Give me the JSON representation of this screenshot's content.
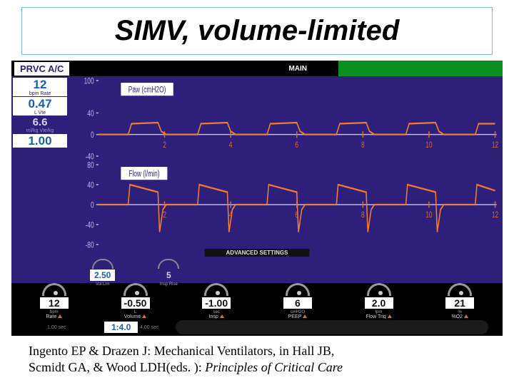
{
  "title": "SIMV, volume-limited",
  "header": {
    "mode": "PRVC A/C",
    "main_tab": "MAIN"
  },
  "readouts": [
    {
      "value": "12",
      "label": "bpm Rate",
      "cls": "light"
    },
    {
      "value": "0.47",
      "label": "L Vte",
      "cls": "light"
    },
    {
      "value": "6.6",
      "label": "ml/kg Vte/kg",
      "cls": "dark"
    },
    {
      "value": "1.00",
      "label": "",
      "cls": "light"
    }
  ],
  "paw": {
    "label_box": "Paw (cmH2O)",
    "ylim": [
      -40,
      100
    ],
    "yticks": [
      100,
      40,
      0,
      -40
    ],
    "xticks": [
      2,
      4,
      6,
      8,
      10,
      12
    ],
    "color_line": "#f27c2e",
    "color_axis": "#bfb7e8",
    "tick_color": "#d86a28",
    "trace": [
      [
        0,
        0
      ],
      [
        0.9,
        0
      ],
      [
        1.0,
        20
      ],
      [
        1.8,
        22
      ],
      [
        1.9,
        6
      ],
      [
        2.05,
        0
      ],
      [
        3.0,
        0
      ],
      [
        3.1,
        20
      ],
      [
        3.9,
        22
      ],
      [
        4.0,
        6
      ],
      [
        4.15,
        0
      ],
      [
        5.1,
        0
      ],
      [
        5.2,
        20
      ],
      [
        6.0,
        22
      ],
      [
        6.1,
        6
      ],
      [
        6.25,
        0
      ],
      [
        7.2,
        0
      ],
      [
        7.3,
        20
      ],
      [
        8.1,
        22
      ],
      [
        8.2,
        6
      ],
      [
        8.35,
        0
      ],
      [
        9.3,
        0
      ],
      [
        9.4,
        20
      ],
      [
        10.2,
        22
      ],
      [
        10.3,
        6
      ],
      [
        10.45,
        0
      ],
      [
        11.4,
        0
      ],
      [
        11.5,
        20
      ],
      [
        12.0,
        20
      ]
    ]
  },
  "flow": {
    "label_box": "Flow (l/min)",
    "ylim": [
      -80,
      80
    ],
    "yticks": [
      80,
      40,
      0,
      -40,
      -80
    ],
    "xticks": [
      2,
      4,
      6,
      8,
      10,
      12
    ],
    "color_line": "#f27c2e",
    "color_axis": "#bfb7e8",
    "tick_color": "#d86a28",
    "trace": [
      [
        0,
        0
      ],
      [
        0.9,
        0
      ],
      [
        0.95,
        40
      ],
      [
        1.8,
        25
      ],
      [
        1.85,
        -55
      ],
      [
        1.95,
        -10
      ],
      [
        2.05,
        0
      ],
      [
        3.0,
        0
      ],
      [
        3.05,
        40
      ],
      [
        3.9,
        25
      ],
      [
        3.95,
        -55
      ],
      [
        4.05,
        -10
      ],
      [
        4.15,
        0
      ],
      [
        5.1,
        0
      ],
      [
        5.15,
        40
      ],
      [
        6.0,
        25
      ],
      [
        6.05,
        -55
      ],
      [
        6.15,
        -10
      ],
      [
        6.25,
        0
      ],
      [
        7.2,
        0
      ],
      [
        7.25,
        40
      ],
      [
        8.1,
        25
      ],
      [
        8.15,
        -55
      ],
      [
        8.25,
        -10
      ],
      [
        8.35,
        0
      ],
      [
        9.3,
        0
      ],
      [
        9.35,
        40
      ],
      [
        10.2,
        25
      ],
      [
        10.25,
        -55
      ],
      [
        10.35,
        -10
      ],
      [
        10.45,
        0
      ],
      [
        11.4,
        0
      ],
      [
        11.45,
        40
      ],
      [
        12.0,
        28
      ]
    ]
  },
  "advanced": {
    "header": "ADVANCED SETTINGS",
    "knobs": [
      {
        "value": "2.50",
        "label": "Vol Lim",
        "plain": false
      },
      {
        "value": "5",
        "label": "Insp Rise",
        "plain": true
      }
    ]
  },
  "bottom_knobs": [
    {
      "value": "12",
      "unit": "bpm",
      "label": "Rate"
    },
    {
      "value": "-0.50",
      "unit": "L",
      "label": "Volume"
    },
    {
      "value": "-1.00",
      "unit": "sec",
      "label": "Insp"
    },
    {
      "value": "6",
      "unit": "cmH2O",
      "label": "PEEP"
    },
    {
      "value": "2.0",
      "unit": "lpm",
      "label": "Flow Trig"
    },
    {
      "value": "21",
      "unit": "%",
      "label": "%O2"
    }
  ],
  "ie": {
    "value": "1:4.0",
    "bar1": "1.00 sec",
    "bar2": "4.00 sec"
  },
  "citation": {
    "line1a": "Ingento EP & Drazen J: Mechanical Ventilators, in Hall JB,",
    "line2a": "Scmidt GA, & Wood LDH(eds. ): ",
    "line2b": "Principles of Critical Care"
  },
  "colors": {
    "purple": "#2d1f7a",
    "orange": "#f27c2e",
    "axis": "#bfb7e8",
    "green": "#0a9020"
  }
}
